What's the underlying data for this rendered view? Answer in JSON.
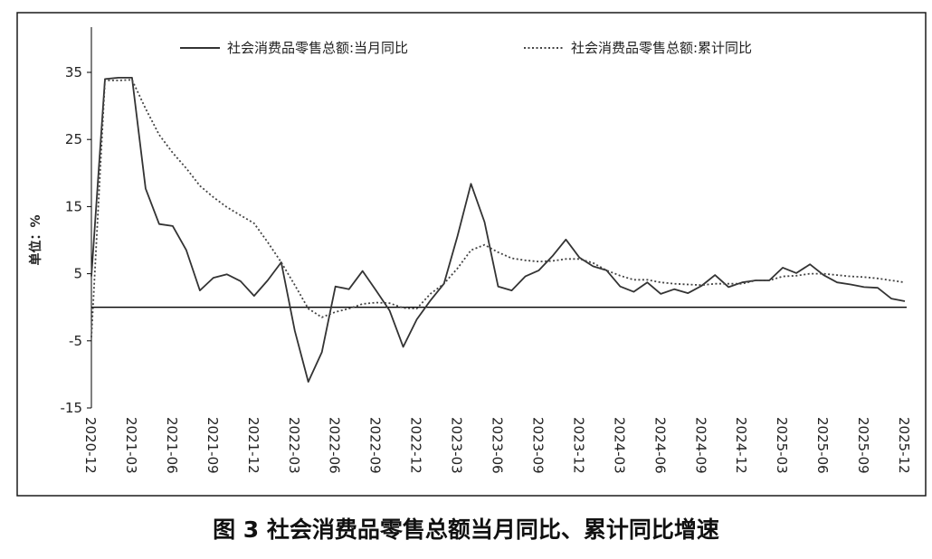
{
  "caption": "图 3   社会消费品零售总额当月同比、累计同比增速",
  "chart_data": {
    "type": "line",
    "title": "",
    "xlabel": "",
    "ylabel": "单位：%",
    "ylim": [
      -15,
      40
    ],
    "yticks": [
      35,
      25,
      15,
      5,
      -5,
      -15
    ],
    "grid": false,
    "legend_position": "top",
    "x": [
      "2020-12",
      "2021-01",
      "2021-02",
      "2021-03",
      "2021-04",
      "2021-05",
      "2021-06",
      "2021-07",
      "2021-08",
      "2021-09",
      "2021-10",
      "2021-11",
      "2021-12",
      "2022-01",
      "2022-02",
      "2022-03",
      "2022-04",
      "2022-05",
      "2022-06",
      "2022-07",
      "2022-08",
      "2022-09",
      "2022-10",
      "2022-11",
      "2022-12",
      "2023-01",
      "2023-02",
      "2023-03",
      "2023-04",
      "2023-05",
      "2023-06",
      "2023-07",
      "2023-08",
      "2023-09",
      "2023-10",
      "2023-11",
      "2023-12",
      "2024-01",
      "2024-02",
      "2024-03",
      "2024-04",
      "2024-05",
      "2024-06",
      "2024-07",
      "2024-08",
      "2024-09",
      "2024-10",
      "2024-11",
      "2024-12",
      "2025-01",
      "2025-02",
      "2025-03",
      "2025-04",
      "2025-05",
      "2025-06",
      "2025-07",
      "2025-08",
      "2025-09",
      "2025-10",
      "2025-11",
      "2025-12"
    ],
    "x_tick_labels": [
      "2020-12",
      "2021-03",
      "2021-06",
      "2021-09",
      "2021-12",
      "2022-03",
      "2022-06",
      "2022-09",
      "2022-12",
      "2023-03",
      "2023-06",
      "2023-09",
      "2023-12",
      "2024-03",
      "2024-06",
      "2024-09",
      "2024-12",
      "2025-03",
      "2025-06",
      "2025-09",
      "2025-12"
    ],
    "series": [
      {
        "name": "社会消费品零售总额:当月同比",
        "style": "solid",
        "color": "#333333",
        "values": [
          4.6,
          34.0,
          34.2,
          34.2,
          17.7,
          12.4,
          12.1,
          8.5,
          2.5,
          4.4,
          4.9,
          3.9,
          1.7,
          4.0,
          6.7,
          -3.5,
          -11.1,
          -6.7,
          3.1,
          2.7,
          5.4,
          2.5,
          -0.5,
          -5.9,
          -1.8,
          1.0,
          3.5,
          10.6,
          18.4,
          12.7,
          3.1,
          2.5,
          4.6,
          5.5,
          7.6,
          10.1,
          7.4,
          6.1,
          5.5,
          3.1,
          2.3,
          3.7,
          2.0,
          2.7,
          2.1,
          3.2,
          4.8,
          3.0,
          3.7,
          4.0,
          4.0,
          5.9,
          5.1,
          6.4,
          4.8,
          3.7,
          3.4,
          3.0,
          2.9,
          1.3,
          0.9
        ]
      },
      {
        "name": "社会消费品零售总额:累计同比",
        "style": "dotted",
        "color": "#444444",
        "values": [
          -4.5,
          33.8,
          33.8,
          33.9,
          29.6,
          25.7,
          23.0,
          20.7,
          18.1,
          16.4,
          14.9,
          13.7,
          12.5,
          9.7,
          6.7,
          3.3,
          -0.2,
          -1.5,
          -0.7,
          -0.2,
          0.5,
          0.7,
          0.6,
          -0.1,
          -0.2,
          2.0,
          3.5,
          5.8,
          8.5,
          9.3,
          8.2,
          7.3,
          7.0,
          6.8,
          6.9,
          7.2,
          7.2,
          6.6,
          5.5,
          4.7,
          4.1,
          4.1,
          3.7,
          3.5,
          3.4,
          3.3,
          3.5,
          3.5,
          3.5,
          4.0,
          4.0,
          4.6,
          4.7,
          5.0,
          5.0,
          4.8,
          4.6,
          4.5,
          4.3,
          4.0,
          3.7
        ]
      }
    ]
  },
  "colors": {
    "frame": "#1a1a1a",
    "axis": "#000000",
    "text": "#222222",
    "background": "#ffffff"
  }
}
